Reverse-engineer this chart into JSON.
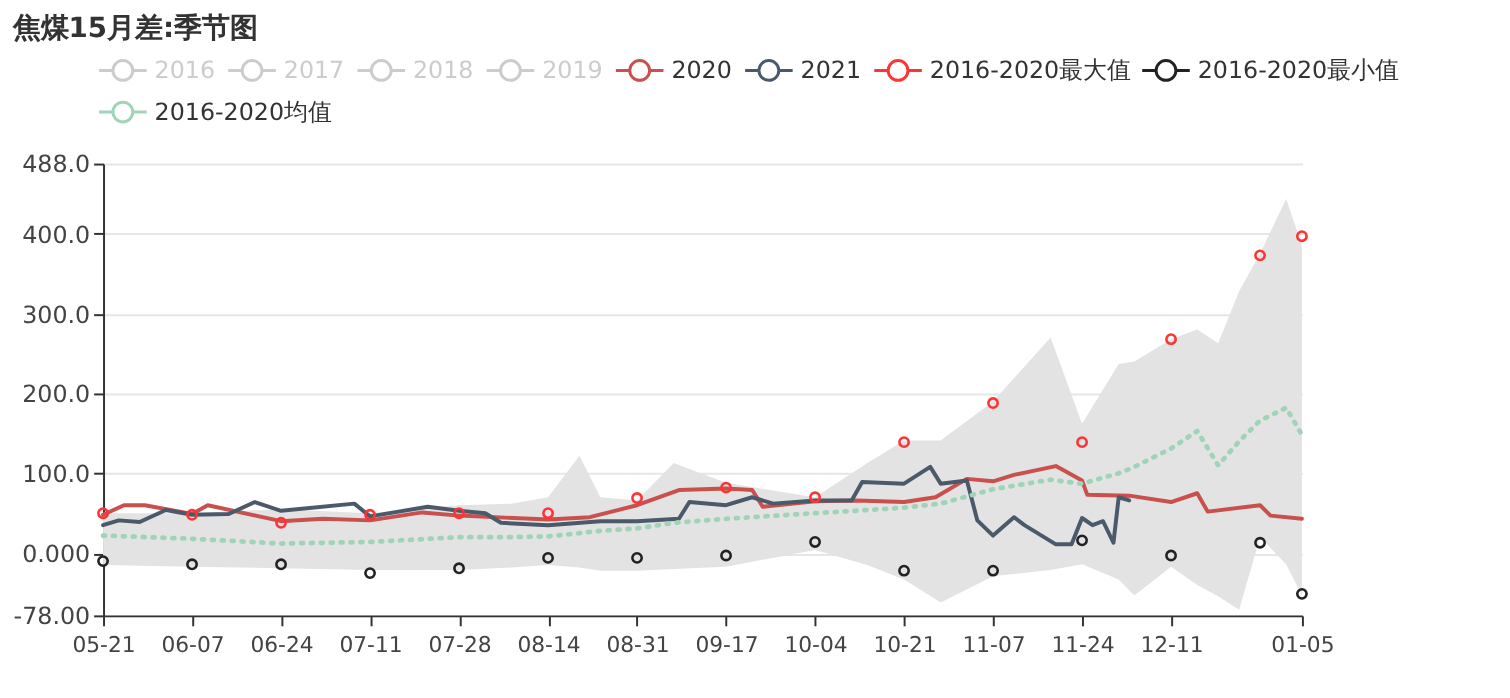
{
  "chart_data": {
    "type": "line",
    "title": "焦煤15月差:季节图",
    "xlim": [
      "2020-05-21",
      "2021-01-05"
    ],
    "xticks": [
      {
        "value": "2020-05-21",
        "label": "05-21"
      },
      {
        "value": "2020-06-07",
        "label": "06-07"
      },
      {
        "value": "2020-06-24",
        "label": "06-24"
      },
      {
        "value": "2020-07-11",
        "label": "07-11"
      },
      {
        "value": "2020-07-28",
        "label": "07-28"
      },
      {
        "value": "2020-08-14",
        "label": "08-14"
      },
      {
        "value": "2020-08-31",
        "label": "08-31"
      },
      {
        "value": "2020-09-17",
        "label": "09-17"
      },
      {
        "value": "2020-10-04",
        "label": "10-04"
      },
      {
        "value": "2020-10-21",
        "label": "10-21"
      },
      {
        "value": "2020-11-07",
        "label": "11-07"
      },
      {
        "value": "2020-11-24",
        "label": "11-24"
      },
      {
        "value": "2020-12-11",
        "label": "12-11"
      },
      {
        "value": "2021-01-05",
        "label": "01-05"
      }
    ],
    "ylim": [
      -78,
      488
    ],
    "yticks": [
      {
        "value": -78,
        "label": "-78.00"
      },
      {
        "value": 0,
        "label": "0.000"
      },
      {
        "value": 100,
        "label": "100.0"
      },
      {
        "value": 200,
        "label": "200.0"
      },
      {
        "value": 300,
        "label": "300.0"
      },
      {
        "value": 400,
        "label": "400.0"
      },
      {
        "value": 488,
        "label": "488.0"
      }
    ],
    "grid": "y",
    "legend": "top",
    "marker": "none",
    "line_style": "solid",
    "series": [
      {
        "name": "2016",
        "color": "#cccccc"
      },
      {
        "name": "2017",
        "color": "#cccccc"
      },
      {
        "name": "2018",
        "color": "#cccccc"
      },
      {
        "name": "2019",
        "color": "#cccccc"
      },
      {
        "name": "2020",
        "color": "#c9504d",
        "x": [
          "2020-05-21",
          "2020-05-25",
          "2020-05-29",
          "2020-06-07",
          "2020-06-10",
          "2020-06-24",
          "2020-07-02",
          "2020-07-11",
          "2020-07-21",
          "2020-07-28",
          "2020-08-14",
          "2020-08-22",
          "2020-08-31",
          "2020-09-08",
          "2020-09-17",
          "2020-09-22",
          "2020-09-24",
          "2020-10-04",
          "2020-10-12",
          "2020-10-21",
          "2020-10-27",
          "2020-11-02",
          "2020-11-07",
          "2020-11-11",
          "2020-11-19",
          "2020-11-24",
          "2020-11-25",
          "2020-12-03",
          "2020-12-11",
          "2020-12-16",
          "2020-12-18",
          "2020-12-28",
          "2020-12-30",
          "2021-01-05"
        ],
        "values": [
          48,
          60,
          60,
          49,
          60,
          40,
          43,
          41,
          51,
          47,
          42,
          45,
          60,
          79,
          81,
          79,
          58,
          65,
          66,
          64,
          70,
          93,
          90,
          98,
          109,
          91,
          73,
          72,
          64,
          75,
          52,
          60,
          47,
          43
        ]
      },
      {
        "name": "2021",
        "color": "#4a5a6a",
        "x": [
          "2020-05-21",
          "2020-05-24",
          "2020-05-28",
          "2020-06-02",
          "2020-06-07",
          "2020-06-14",
          "2020-06-19",
          "2020-06-24",
          "2020-07-08",
          "2020-07-11",
          "2020-07-22",
          "2020-07-28",
          "2020-08-02",
          "2020-08-05",
          "2020-08-14",
          "2020-08-24",
          "2020-08-31",
          "2020-09-08",
          "2020-09-10",
          "2020-09-17",
          "2020-09-22",
          "2020-09-26",
          "2020-10-04",
          "2020-10-11",
          "2020-10-13",
          "2020-10-21",
          "2020-10-26",
          "2020-10-28",
          "2020-11-02",
          "2020-11-04",
          "2020-11-07",
          "2020-11-11",
          "2020-11-13",
          "2020-11-19",
          "2020-11-22",
          "2020-11-24",
          "2020-11-26",
          "2020-11-28",
          "2020-11-30",
          "2020-12-01",
          "2020-12-03"
        ],
        "values": [
          35,
          41,
          39,
          54,
          48,
          49,
          64,
          53,
          62,
          46,
          58,
          53,
          50,
          38,
          35,
          40,
          40,
          43,
          64,
          60,
          70,
          62,
          66,
          66,
          89,
          87,
          108,
          87,
          91,
          41,
          22,
          45,
          35,
          11,
          11,
          44,
          35,
          40,
          13,
          70,
          66
        ]
      },
      {
        "name": "2016-2020最大值",
        "color": "#ff3333",
        "type": "scatter",
        "marker": "circle",
        "x": [
          "2020-05-21",
          "2020-06-07",
          "2020-06-24",
          "2020-07-11",
          "2020-07-28",
          "2020-08-14",
          "2020-08-31",
          "2020-09-17",
          "2020-10-04",
          "2020-10-21",
          "2020-11-07",
          "2020-11-24",
          "2020-12-11",
          "2020-12-28",
          "2021-01-05"
        ],
        "values": [
          50,
          48,
          38,
          48,
          50,
          50,
          69,
          82,
          70,
          139,
          188,
          139,
          268,
          373,
          397
        ]
      },
      {
        "name": "2016-2020最小值",
        "color": "#222222",
        "type": "scatter",
        "marker": "circle",
        "x": [
          "2020-05-21",
          "2020-06-07",
          "2020-06-24",
          "2020-07-11",
          "2020-07-28",
          "2020-08-14",
          "2020-08-31",
          "2020-09-17",
          "2020-10-04",
          "2020-10-21",
          "2020-11-07",
          "2020-11-24",
          "2020-12-11",
          "2020-12-28",
          "2021-01-05"
        ],
        "values": [
          -10,
          -14,
          -14,
          -25,
          -19,
          -6,
          -6,
          -3,
          14,
          -22,
          -22,
          16,
          -3,
          13,
          -51
        ]
      },
      {
        "name": "2016-2020均值",
        "color": "#9fd4b8",
        "line_style": "dotted",
        "x": [
          "2020-05-21",
          "2020-06-07",
          "2020-06-24",
          "2020-07-11",
          "2020-07-28",
          "2020-08-07",
          "2020-08-14",
          "2020-08-20",
          "2020-08-24",
          "2020-08-31",
          "2020-09-07",
          "2020-09-17",
          "2020-10-04",
          "2020-10-14",
          "2020-10-21",
          "2020-10-28",
          "2020-11-07",
          "2020-11-18",
          "2020-11-24",
          "2020-12-01",
          "2020-12-04",
          "2020-12-11",
          "2020-12-16",
          "2020-12-20",
          "2020-12-24",
          "2020-12-28",
          "2021-01-02",
          "2021-01-05"
        ],
        "values": [
          22,
          18,
          12,
          14,
          20,
          20,
          21,
          25,
          28,
          31,
          38,
          43,
          50,
          54,
          57,
          62,
          80,
          92,
          87,
          100,
          108,
          131,
          153,
          110,
          140,
          166,
          182,
          148
        ],
        "lower": [
          -15,
          -17,
          -19,
          -21,
          -21,
          -18,
          -15,
          -18,
          -22,
          -22,
          -20,
          -17,
          4,
          -15,
          -33,
          -62,
          -29,
          -21,
          -14,
          -33,
          -53,
          -17,
          -40,
          -54,
          -71,
          20,
          -14,
          -53
        ],
        "upper": [
          50,
          50,
          55,
          50,
          60,
          62,
          70,
          122,
          70,
          66,
          113,
          88,
          70,
          113,
          141,
          141,
          190,
          270,
          162,
          237,
          240,
          268,
          280,
          263,
          328,
          375,
          444,
          385
        ]
      }
    ]
  }
}
